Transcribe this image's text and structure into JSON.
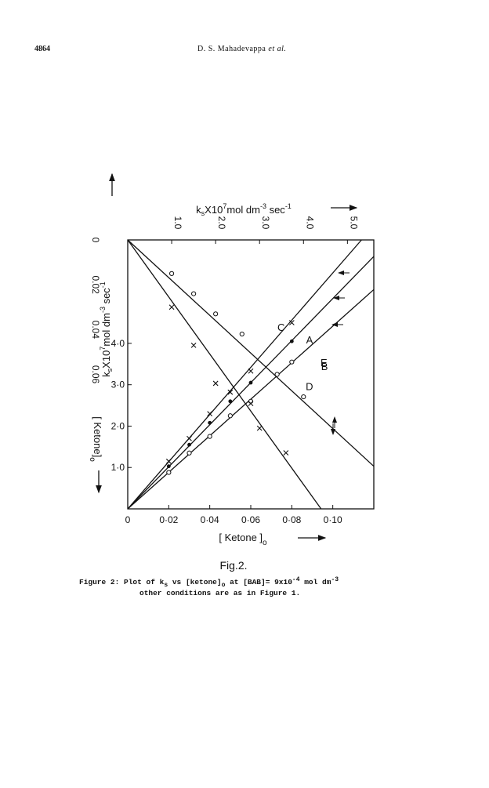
{
  "header": {
    "page_number": "4864",
    "authors": "D. S. Mahadevappa",
    "et_al": "et al."
  },
  "figure": {
    "fig_label": "Fig.2.",
    "caption_line1_parts": [
      "Figure 2: Plot of k",
      "s",
      " vs ",
      "[ketone]",
      "o",
      " at ",
      "[BAB]",
      "= 9x10",
      "-4",
      " mol dm",
      "-3"
    ],
    "caption_line2": "other conditions are as in Figure 1."
  },
  "chart_data": {
    "type": "line",
    "x_axis": {
      "label": "[ Ketone ]o",
      "range": [
        0,
        0.12
      ],
      "ticks": [
        0,
        0.02,
        0.04,
        0.06,
        0.08,
        0.1
      ],
      "tick_labels": [
        "0",
        "0·02",
        "0·04",
        "0·06",
        "0·08",
        "0·10"
      ]
    },
    "y_axis": {
      "label": "ksX10^7 mol dm^-3 sec^-1",
      "range": [
        0,
        6.5
      ],
      "ticks": [
        1,
        2,
        3,
        4
      ],
      "tick_labels": [
        "1·0",
        "2·0",
        "3·0",
        "4·0"
      ]
    },
    "top_axis": {
      "label": "ksX10^7 mol dm^-3 sec^-1",
      "range": [
        0,
        5.6
      ],
      "ticks": [
        1,
        2,
        3,
        4,
        5
      ],
      "tick_labels": [
        "1.0",
        "2.0",
        "3.0",
        "4.0",
        "5.0"
      ]
    },
    "left_axis": {
      "label": "[ Ketone]o",
      "range": [
        0,
        0.12
      ],
      "ticks": [
        0,
        0.02,
        0.04,
        0.06
      ],
      "tick_labels": [
        "0",
        "0.02",
        "0.04",
        "0.06"
      ]
    },
    "grid": false,
    "series": [
      {
        "name": "A",
        "axes": "bottom-left",
        "markers": "dot",
        "line": [
          [
            0,
            0
          ],
          [
            0.12,
            6.1
          ]
        ],
        "points": [
          [
            0.02,
            1.03
          ],
          [
            0.03,
            1.55
          ],
          [
            0.04,
            2.08
          ],
          [
            0.05,
            2.6
          ],
          [
            0.06,
            3.05
          ],
          [
            0.08,
            4.05
          ]
        ]
      },
      {
        "name": "C",
        "axes": "bottom-left",
        "markers": "cross",
        "line": [
          [
            0,
            0
          ],
          [
            0.114,
            6.5
          ]
        ],
        "points": [
          [
            0.02,
            1.15
          ],
          [
            0.03,
            1.7
          ],
          [
            0.04,
            2.3
          ],
          [
            0.05,
            2.82
          ],
          [
            0.06,
            3.33
          ],
          [
            0.08,
            4.5
          ]
        ]
      },
      {
        "name": "E",
        "axes": "bottom-left",
        "markers": "circle",
        "line": [
          [
            0,
            0
          ],
          [
            0.12,
            5.3
          ]
        ],
        "points": [
          [
            0.02,
            0.88
          ],
          [
            0.03,
            1.35
          ],
          [
            0.04,
            1.75
          ],
          [
            0.05,
            2.25
          ],
          [
            0.06,
            2.6
          ],
          [
            0.08,
            3.55
          ]
        ]
      },
      {
        "name": "B",
        "axes": "top-left",
        "markers": "circle",
        "line": [
          [
            0,
            0
          ],
          [
            5.6,
            0.101
          ]
        ],
        "points": [
          [
            1.0,
            0.015
          ],
          [
            1.5,
            0.024
          ],
          [
            2.0,
            0.033
          ],
          [
            2.6,
            0.042
          ],
          [
            3.4,
            0.06
          ],
          [
            4.0,
            0.07
          ]
        ]
      },
      {
        "name": "D",
        "axes": "top-left",
        "markers": "cross",
        "line": [
          [
            0,
            0
          ],
          [
            4.4,
            0.12
          ]
        ],
        "points": [
          [
            1.0,
            0.03
          ],
          [
            1.5,
            0.047
          ],
          [
            2.0,
            0.064
          ],
          [
            2.8,
            0.073
          ],
          [
            3.0,
            0.084
          ],
          [
            3.6,
            0.095
          ]
        ]
      }
    ],
    "curve_labels": [
      {
        "text": "A",
        "series": "A"
      },
      {
        "text": "B",
        "series": "B"
      },
      {
        "text": "C",
        "series": "C"
      },
      {
        "text": "D",
        "series": "D"
      },
      {
        "text": "E",
        "series": "E"
      }
    ]
  }
}
